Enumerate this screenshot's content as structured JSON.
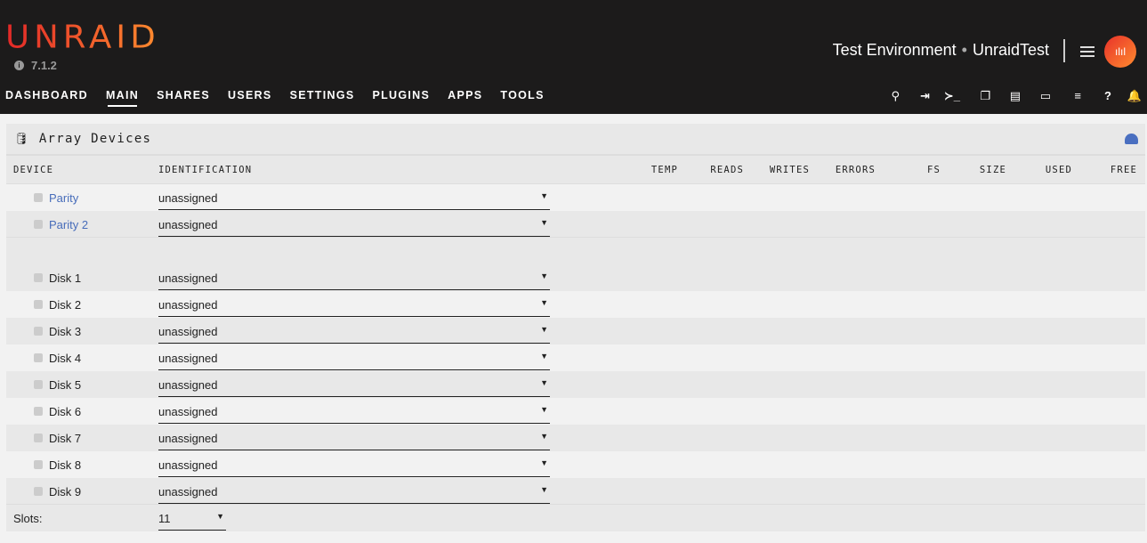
{
  "brand": {
    "logo": "UNRAID",
    "version": "7.1.2",
    "info_icon": "info-circle-icon"
  },
  "server": {
    "description": "Test Environment",
    "name": "UnraidTest"
  },
  "nav": [
    {
      "label": "DASHBOARD"
    },
    {
      "label": "MAIN",
      "active": true
    },
    {
      "label": "SHARES"
    },
    {
      "label": "USERS"
    },
    {
      "label": "SETTINGS"
    },
    {
      "label": "PLUGINS"
    },
    {
      "label": "APPS"
    },
    {
      "label": "TOOLS"
    }
  ],
  "toolbar_icons": [
    "search-icon",
    "logout-icon",
    "terminal-icon",
    "clone-icon",
    "feedback-icon",
    "desktop-icon",
    "log-icon",
    "help-icon",
    "bell-icon"
  ],
  "panel": {
    "title": "Array Devices",
    "title_icon": "database-icon",
    "action_icon": "speedometer-icon",
    "columns": [
      "DEVICE",
      "IDENTIFICATION",
      "TEMP",
      "READS",
      "WRITES",
      "ERRORS",
      "FS",
      "SIZE",
      "USED",
      "FREE"
    ],
    "parity": [
      {
        "name": "Parity",
        "value": "unassigned"
      },
      {
        "name": "Parity 2",
        "value": "unassigned"
      }
    ],
    "disks": [
      {
        "name": "Disk 1",
        "value": "unassigned"
      },
      {
        "name": "Disk 2",
        "value": "unassigned"
      },
      {
        "name": "Disk 3",
        "value": "unassigned"
      },
      {
        "name": "Disk 4",
        "value": "unassigned"
      },
      {
        "name": "Disk 5",
        "value": "unassigned"
      },
      {
        "name": "Disk 6",
        "value": "unassigned"
      },
      {
        "name": "Disk 7",
        "value": "unassigned"
      },
      {
        "name": "Disk 8",
        "value": "unassigned"
      },
      {
        "name": "Disk 9",
        "value": "unassigned"
      }
    ],
    "slots_label": "Slots:",
    "slots_value": "11"
  },
  "colors": {
    "header_bg": "#1c1b1b",
    "link": "#486dba",
    "brand_start": "#e22828",
    "brand_end": "#ff8c2f"
  }
}
